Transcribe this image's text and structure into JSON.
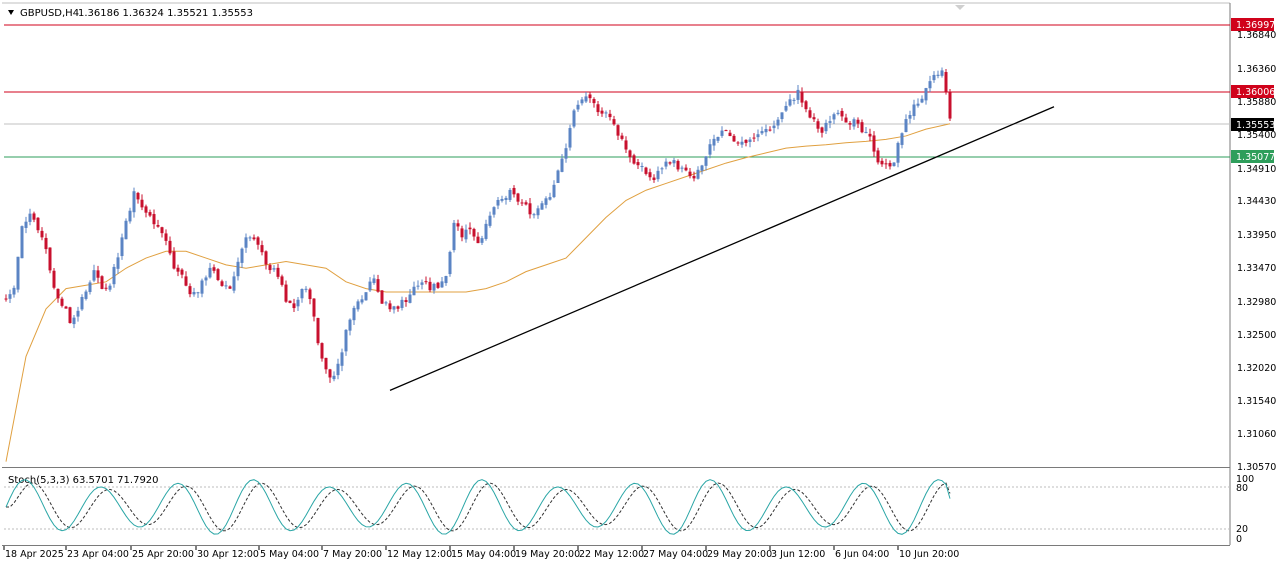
{
  "header": {
    "symbol_label": "GBPUSD,H4",
    "ohlc": "1.36186 1.36324 1.35521 1.35553"
  },
  "price_axis": {
    "ticks": [
      "1.36840",
      "1.36360",
      "1.35880",
      "1.35400",
      "1.34910",
      "1.34430",
      "1.33950",
      "1.33470",
      "1.32980",
      "1.32500",
      "1.32020",
      "1.31540",
      "1.31060",
      "1.30570"
    ]
  },
  "level_tags": [
    {
      "label": "1.36997",
      "color": "#d0021b",
      "kind": "resistance-upper"
    },
    {
      "label": "1.36006",
      "color": "#d0021b",
      "kind": "resistance"
    },
    {
      "label": "1.35553",
      "color": "#000000",
      "kind": "current-price"
    },
    {
      "label": "1.35077",
      "color": "#2e9e5b",
      "kind": "support"
    }
  ],
  "stochastic": {
    "label": "Stoch(5,3,3) 63.5701 71.7920",
    "levels": [
      "100",
      "80",
      "20",
      "0"
    ]
  },
  "time_axis": {
    "ticks": [
      "18 Apr 2025",
      "23 Apr 04:00",
      "25 Apr 20:00",
      "30 Apr 12:00",
      "5 May 04:00",
      "7 May 20:00",
      "12 May 12:00",
      "15 May 04:00",
      "19 May 20:00",
      "22 May 12:00",
      "27 May 04:00",
      "29 May 20:00",
      "3 Jun 12:00",
      "6 Jun 04:00",
      "10 Jun 20:00"
    ]
  },
  "colors": {
    "bull_candle": "#5b84c4",
    "bear_candle": "#c8102e",
    "moving_average": "#e0a040",
    "trendline": "#000000",
    "stoch_main": "#2aa6a6",
    "stoch_signal": "#333333"
  },
  "chart_data": {
    "type": "candlestick",
    "instrument": "GBPUSD",
    "timeframe": "H4",
    "y_range": [
      1.304,
      1.3718
    ],
    "anchor_closes": [
      [
        0,
        1.3285
      ],
      [
        2,
        1.33
      ],
      [
        4,
        1.339
      ],
      [
        6,
        1.3415
      ],
      [
        8,
        1.339
      ],
      [
        10,
        1.336
      ],
      [
        12,
        1.33
      ],
      [
        14,
        1.328
      ],
      [
        16,
        1.325
      ],
      [
        18,
        1.327
      ],
      [
        20,
        1.3295
      ],
      [
        22,
        1.333
      ],
      [
        24,
        1.33
      ],
      [
        26,
        1.331
      ],
      [
        28,
        1.335
      ],
      [
        30,
        1.34
      ],
      [
        32,
        1.344
      ],
      [
        34,
        1.342
      ],
      [
        36,
        1.3405
      ],
      [
        38,
        1.3395
      ],
      [
        40,
        1.337
      ],
      [
        42,
        1.333
      ],
      [
        44,
        1.332
      ],
      [
        46,
        1.329
      ],
      [
        48,
        1.33
      ],
      [
        50,
        1.332
      ],
      [
        52,
        1.333
      ],
      [
        54,
        1.33
      ],
      [
        56,
        1.33
      ],
      [
        58,
        1.334
      ],
      [
        60,
        1.338
      ],
      [
        62,
        1.337
      ],
      [
        64,
        1.335
      ],
      [
        66,
        1.333
      ],
      [
        68,
        1.332
      ],
      [
        70,
        1.328
      ],
      [
        72,
        1.327
      ],
      [
        74,
        1.33
      ],
      [
        76,
        1.329
      ],
      [
        78,
        1.322
      ],
      [
        80,
        1.318
      ],
      [
        82,
        1.317
      ],
      [
        84,
        1.321
      ],
      [
        86,
        1.326
      ],
      [
        88,
        1.328
      ],
      [
        90,
        1.33
      ],
      [
        92,
        1.332
      ],
      [
        94,
        1.328
      ],
      [
        96,
        1.327
      ],
      [
        98,
        1.3275
      ],
      [
        100,
        1.3285
      ],
      [
        102,
        1.33
      ],
      [
        104,
        1.331
      ],
      [
        106,
        1.33
      ],
      [
        108,
        1.3305
      ],
      [
        110,
        1.332
      ],
      [
        112,
        1.34
      ],
      [
        114,
        1.338
      ],
      [
        116,
        1.339
      ],
      [
        118,
        1.337
      ],
      [
        120,
        1.339
      ],
      [
        122,
        1.342
      ],
      [
        124,
        1.343
      ],
      [
        126,
        1.344
      ],
      [
        128,
        1.343
      ],
      [
        130,
        1.342
      ],
      [
        132,
        1.341
      ],
      [
        134,
        1.343
      ],
      [
        136,
        1.344
      ],
      [
        138,
        1.347
      ],
      [
        140,
        1.351
      ],
      [
        142,
        1.356
      ],
      [
        144,
        1.358
      ],
      [
        146,
        1.3575
      ],
      [
        148,
        1.3565
      ],
      [
        150,
        1.356
      ],
      [
        152,
        1.354
      ],
      [
        154,
        1.352
      ],
      [
        156,
        1.3495
      ],
      [
        158,
        1.348
      ],
      [
        160,
        1.347
      ],
      [
        162,
        1.346
      ],
      [
        164,
        1.348
      ],
      [
        166,
        1.349
      ],
      [
        168,
        1.348
      ],
      [
        170,
        1.347
      ],
      [
        172,
        1.346
      ],
      [
        174,
        1.348
      ],
      [
        176,
        1.351
      ],
      [
        178,
        1.352
      ],
      [
        180,
        1.3535
      ],
      [
        182,
        1.352
      ],
      [
        184,
        1.3515
      ],
      [
        186,
        1.352
      ],
      [
        188,
        1.3525
      ],
      [
        190,
        1.3535
      ],
      [
        192,
        1.354
      ],
      [
        194,
        1.356
      ],
      [
        196,
        1.3575
      ],
      [
        198,
        1.359
      ],
      [
        200,
        1.356
      ],
      [
        202,
        1.3545
      ],
      [
        204,
        1.353
      ],
      [
        206,
        1.355
      ],
      [
        208,
        1.3565
      ],
      [
        210,
        1.355
      ],
      [
        212,
        1.3545
      ],
      [
        214,
        1.353
      ],
      [
        216,
        1.352
      ],
      [
        218,
        1.349
      ],
      [
        220,
        1.348
      ],
      [
        222,
        1.349
      ],
      [
        224,
        1.353
      ],
      [
        226,
        1.356
      ],
      [
        228,
        1.3575
      ],
      [
        230,
        1.359
      ],
      [
        232,
        1.361
      ],
      [
        234,
        1.362
      ],
      [
        236,
        1.3555
      ]
    ],
    "moving_average": [
      [
        0,
        1.3045
      ],
      [
        5,
        1.32
      ],
      [
        10,
        1.327
      ],
      [
        15,
        1.33
      ],
      [
        20,
        1.3305
      ],
      [
        25,
        1.331
      ],
      [
        30,
        1.333
      ],
      [
        35,
        1.3345
      ],
      [
        40,
        1.3355
      ],
      [
        45,
        1.3355
      ],
      [
        50,
        1.3345
      ],
      [
        55,
        1.3335
      ],
      [
        60,
        1.333
      ],
      [
        65,
        1.3335
      ],
      [
        70,
        1.334
      ],
      [
        75,
        1.3335
      ],
      [
        80,
        1.333
      ],
      [
        85,
        1.331
      ],
      [
        90,
        1.33
      ],
      [
        95,
        1.3295
      ],
      [
        100,
        1.3295
      ],
      [
        105,
        1.3295
      ],
      [
        110,
        1.3295
      ],
      [
        115,
        1.3295
      ],
      [
        120,
        1.33
      ],
      [
        125,
        1.331
      ],
      [
        130,
        1.3325
      ],
      [
        135,
        1.3335
      ],
      [
        140,
        1.3345
      ],
      [
        145,
        1.3375
      ],
      [
        150,
        1.3405
      ],
      [
        155,
        1.343
      ],
      [
        160,
        1.3445
      ],
      [
        165,
        1.3455
      ],
      [
        170,
        1.3465
      ],
      [
        175,
        1.3475
      ],
      [
        180,
        1.3485
      ],
      [
        185,
        1.3493
      ],
      [
        190,
        1.35
      ],
      [
        195,
        1.3507
      ],
      [
        200,
        1.351
      ],
      [
        205,
        1.3512
      ],
      [
        210,
        1.3515
      ],
      [
        215,
        1.3517
      ],
      [
        220,
        1.352
      ],
      [
        225,
        1.3525
      ],
      [
        230,
        1.3535
      ],
      [
        236,
        1.3543
      ]
    ],
    "trendline": {
      "from": [
        96,
        1.315
      ],
      "to": [
        262,
        1.3568
      ]
    },
    "levels": [
      1.36997,
      1.36006,
      1.35553,
      1.35077
    ],
    "stochastic_k": 63.5701,
    "stochastic_d": 71.792
  }
}
